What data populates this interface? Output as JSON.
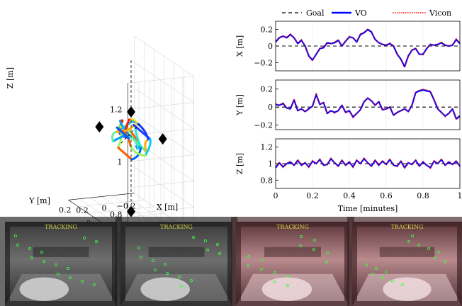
{
  "chart_data": [
    {
      "type": "line3d",
      "xlabel": "X [m]",
      "ylabel": "Y [m]",
      "zlabel": "Z [m]",
      "x_ticks": [
        "0.2",
        "0",
        "−0.2"
      ],
      "y_ticks": [
        "−0.2",
        "0",
        "0.2"
      ],
      "z_ticks": [
        "0.8",
        "1",
        "1.2"
      ],
      "xlim": [
        -0.3,
        0.3
      ],
      "ylim": [
        -0.3,
        0.3
      ],
      "zlim": [
        0.7,
        1.3
      ],
      "grid": true,
      "goal_markers": [
        {
          "x": 0.0,
          "y": 0.0,
          "z": 1.1
        },
        {
          "x": 0.0,
          "y": 0.0,
          "z": 0.72
        },
        {
          "x": -0.18,
          "y": -0.12,
          "z": 1.02
        },
        {
          "x": 0.18,
          "y": 0.12,
          "z": 1.02
        }
      ],
      "trajectory": [
        [
          0.02,
          0.01,
          1.0
        ],
        [
          0.08,
          0.04,
          1.03
        ],
        [
          0.12,
          -0.02,
          1.06
        ],
        [
          0.06,
          -0.08,
          1.04
        ],
        [
          -0.02,
          -0.06,
          0.98
        ],
        [
          -0.08,
          0.02,
          0.95
        ],
        [
          -0.04,
          0.08,
          0.99
        ],
        [
          0.04,
          0.06,
          1.04
        ],
        [
          0.1,
          0.0,
          1.07
        ],
        [
          0.05,
          -0.05,
          1.02
        ],
        [
          -0.05,
          -0.1,
          0.97
        ],
        [
          -0.12,
          -0.04,
          1.0
        ],
        [
          -0.06,
          0.05,
          1.05
        ],
        [
          0.02,
          0.09,
          1.01
        ],
        [
          0.09,
          0.03,
          0.96
        ],
        [
          0.03,
          -0.04,
          0.93
        ],
        [
          -0.07,
          -0.02,
          0.97
        ],
        [
          -0.1,
          0.06,
          1.03
        ],
        [
          -0.02,
          0.04,
          1.06
        ],
        [
          0.07,
          -0.03,
          1.02
        ],
        [
          0.12,
          0.05,
          0.98
        ],
        [
          0.04,
          0.1,
          1.0
        ],
        [
          -0.05,
          0.03,
          1.04
        ],
        [
          -0.11,
          -0.07,
          1.01
        ],
        [
          -0.03,
          -0.11,
          0.96
        ],
        [
          0.06,
          -0.06,
          0.99
        ],
        [
          0.11,
          0.02,
          1.04
        ],
        [
          0.02,
          0.0,
          1.0
        ]
      ]
    },
    {
      "type": "line",
      "legend": [
        "Goal",
        "VO",
        "Vicon"
      ],
      "legend_position": "top",
      "colors": {
        "goal": "#000000",
        "vo": "#0000ff",
        "vicon": "#ff0000"
      },
      "xlabel": "Time [minutes]",
      "xlim": [
        0,
        1
      ],
      "x_ticks": [
        "0",
        "0.2",
        "0.4",
        "0.6",
        "0.8",
        "1"
      ],
      "x": [
        0,
        0.02,
        0.04,
        0.06,
        0.08,
        0.1,
        0.12,
        0.14,
        0.16,
        0.18,
        0.2,
        0.22,
        0.24,
        0.26,
        0.28,
        0.3,
        0.32,
        0.34,
        0.36,
        0.38,
        0.4,
        0.42,
        0.44,
        0.46,
        0.48,
        0.5,
        0.52,
        0.54,
        0.56,
        0.58,
        0.6,
        0.62,
        0.64,
        0.66,
        0.68,
        0.7,
        0.72,
        0.74,
        0.76,
        0.78,
        0.8,
        0.82,
        0.84,
        0.86,
        0.88,
        0.9,
        0.92,
        0.94,
        0.96,
        0.98,
        1.0
      ],
      "panels": [
        {
          "ylabel": "X [m]",
          "ylim": [
            -0.3,
            0.3
          ],
          "y_ticks": [
            "0.2",
            "0",
            "−0.2"
          ],
          "goal": 0,
          "vo": [
            0.05,
            0.1,
            0.12,
            0.1,
            0.14,
            0.1,
            0.03,
            0.07,
            0.0,
            -0.12,
            -0.17,
            -0.1,
            -0.03,
            -0.02,
            0.04,
            0.03,
            0.04,
            0.07,
            0.0,
            0.06,
            0.11,
            0.1,
            0.05,
            0.14,
            0.16,
            0.2,
            0.17,
            0.08,
            0.04,
            0.02,
            0.01,
            0.03,
            0.0,
            -0.1,
            -0.16,
            -0.25,
            -0.12,
            -0.05,
            -0.03,
            -0.1,
            -0.1,
            -0.03,
            0.02,
            0.01,
            0.02,
            0.04,
            0.01,
            0.0,
            0.01,
            0.08,
            0.03
          ],
          "vicon": [
            0.06,
            0.11,
            0.12,
            0.11,
            0.15,
            0.1,
            0.04,
            0.08,
            0.0,
            -0.13,
            -0.18,
            -0.1,
            -0.03,
            -0.01,
            0.04,
            0.03,
            0.05,
            0.08,
            0.0,
            0.06,
            0.12,
            0.1,
            0.06,
            0.15,
            0.17,
            0.21,
            0.18,
            0.08,
            0.04,
            0.02,
            0.01,
            0.04,
            0.0,
            -0.1,
            -0.17,
            -0.26,
            -0.12,
            -0.05,
            -0.02,
            -0.1,
            -0.11,
            -0.03,
            0.02,
            0.01,
            0.02,
            0.05,
            0.01,
            0.0,
            0.02,
            0.09,
            0.04
          ]
        },
        {
          "ylabel": "Y [m]",
          "ylim": [
            -0.25,
            0.3
          ],
          "y_ticks": [
            "0.2",
            "0",
            "−0.2"
          ],
          "goal": 0,
          "vo": [
            0.03,
            0.02,
            0.04,
            -0.01,
            -0.02,
            0.08,
            -0.04,
            -0.02,
            -0.05,
            -0.02,
            0.01,
            0.14,
            0.03,
            0.05,
            -0.07,
            -0.04,
            -0.06,
            -0.04,
            0.02,
            -0.06,
            -0.04,
            -0.11,
            -0.07,
            -0.03,
            0.06,
            0.1,
            0.07,
            0.02,
            0.06,
            -0.03,
            -0.02,
            0.0,
            -0.09,
            -0.06,
            -0.04,
            -0.02,
            -0.05,
            0.02,
            0.16,
            0.18,
            0.19,
            0.18,
            0.17,
            0.08,
            -0.02,
            -0.06,
            -0.1,
            -0.07,
            -0.02,
            -0.13,
            -0.1
          ],
          "vicon": [
            0.04,
            0.02,
            0.05,
            -0.01,
            -0.02,
            0.09,
            -0.04,
            -0.02,
            -0.05,
            -0.02,
            0.01,
            0.15,
            0.03,
            0.05,
            -0.07,
            -0.04,
            -0.07,
            -0.04,
            0.02,
            -0.06,
            -0.04,
            -0.12,
            -0.07,
            -0.03,
            0.07,
            0.1,
            0.07,
            0.02,
            0.06,
            -0.03,
            -0.02,
            0.0,
            -0.09,
            -0.06,
            -0.04,
            -0.02,
            -0.05,
            0.03,
            0.17,
            0.19,
            0.2,
            0.19,
            0.18,
            0.08,
            -0.02,
            -0.06,
            -0.11,
            -0.07,
            -0.02,
            -0.14,
            -0.11
          ]
        },
        {
          "ylabel": "Z [m]",
          "ylim": [
            0.7,
            1.3
          ],
          "y_ticks": [
            "1.2",
            "1",
            "0.8"
          ],
          "goal": 1,
          "vo": [
            0.95,
            1.01,
            0.96,
            1.0,
            1.02,
            0.98,
            1.04,
            0.98,
            1.01,
            0.96,
            1.03,
            1.0,
            1.05,
            0.98,
            0.99,
            1.06,
            1.01,
            0.97,
            1.04,
            0.98,
            1.02,
            0.96,
            1.04,
            1.0,
            1.06,
            1.01,
            0.97,
            1.04,
            0.98,
            1.03,
            0.99,
            1.05,
            0.98,
            0.97,
            1.03,
            0.95,
            1.01,
            0.99,
            1.04,
            0.97,
            1.02,
            0.98,
            0.95,
            1.03,
            1.0,
            1.05,
            0.98,
            1.02,
            0.99,
            1.03,
            0.97
          ],
          "vicon": [
            0.96,
            1.02,
            0.95,
            1.0,
            1.03,
            0.98,
            1.05,
            0.98,
            1.02,
            0.95,
            1.04,
            1.0,
            1.06,
            0.98,
            0.99,
            1.07,
            1.01,
            0.96,
            1.05,
            0.98,
            1.03,
            0.95,
            1.05,
            1.0,
            1.07,
            1.01,
            0.96,
            1.05,
            0.98,
            1.04,
            0.99,
            1.06,
            0.98,
            0.96,
            1.04,
            0.94,
            1.01,
            0.99,
            1.05,
            0.96,
            1.03,
            0.98,
            0.94,
            1.04,
            1.0,
            1.06,
            0.98,
            1.03,
            0.99,
            1.04,
            0.96
          ]
        }
      ]
    }
  ],
  "camera_frames": [
    {
      "overlay": "TRACKING",
      "tint": "gray"
    },
    {
      "overlay": "TRACKING",
      "tint": "gray"
    },
    {
      "overlay": "TRACKING",
      "tint": "pink"
    },
    {
      "overlay": "TRACKING",
      "tint": "pink"
    }
  ]
}
